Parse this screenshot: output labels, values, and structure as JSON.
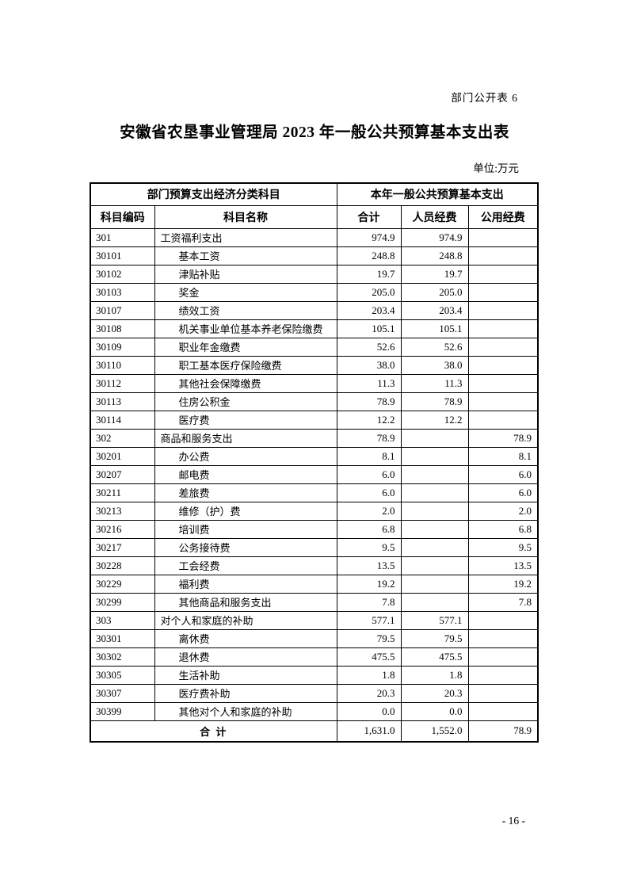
{
  "page": {
    "doc_label": "部门公开表 6",
    "title": "安徽省农垦事业管理局 2023 年一般公共预算基本支出表",
    "unit_note": "单位:万元",
    "page_number": "- 16 -"
  },
  "table": {
    "header_group_left": "部门预算支出经济分类科目",
    "header_group_right": "本年一般公共预算基本支出",
    "columns": [
      "科目编码",
      "科目名称",
      "合计",
      "人员经费",
      "公用经费"
    ],
    "rows": [
      {
        "code": "301",
        "name": "工资福利支出",
        "total": "974.9",
        "personnel": "974.9",
        "public": "",
        "level": 0
      },
      {
        "code": "30101",
        "name": "基本工资",
        "total": "248.8",
        "personnel": "248.8",
        "public": "",
        "level": 1
      },
      {
        "code": "30102",
        "name": "津贴补贴",
        "total": "19.7",
        "personnel": "19.7",
        "public": "",
        "level": 1
      },
      {
        "code": "30103",
        "name": "奖金",
        "total": "205.0",
        "personnel": "205.0",
        "public": "",
        "level": 1
      },
      {
        "code": "30107",
        "name": "绩效工资",
        "total": "203.4",
        "personnel": "203.4",
        "public": "",
        "level": 1
      },
      {
        "code": "30108",
        "name": "机关事业单位基本养老保险缴费",
        "total": "105.1",
        "personnel": "105.1",
        "public": "",
        "level": 1
      },
      {
        "code": "30109",
        "name": "职业年金缴费",
        "total": "52.6",
        "personnel": "52.6",
        "public": "",
        "level": 1
      },
      {
        "code": "30110",
        "name": "职工基本医疗保险缴费",
        "total": "38.0",
        "personnel": "38.0",
        "public": "",
        "level": 1
      },
      {
        "code": "30112",
        "name": "其他社会保障缴费",
        "total": "11.3",
        "personnel": "11.3",
        "public": "",
        "level": 1
      },
      {
        "code": "30113",
        "name": "住房公积金",
        "total": "78.9",
        "personnel": "78.9",
        "public": "",
        "level": 1
      },
      {
        "code": "30114",
        "name": "医疗费",
        "total": "12.2",
        "personnel": "12.2",
        "public": "",
        "level": 1
      },
      {
        "code": "302",
        "name": "商品和服务支出",
        "total": "78.9",
        "personnel": "",
        "public": "78.9",
        "level": 0
      },
      {
        "code": "30201",
        "name": "办公费",
        "total": "8.1",
        "personnel": "",
        "public": "8.1",
        "level": 1
      },
      {
        "code": "30207",
        "name": "邮电费",
        "total": "6.0",
        "personnel": "",
        "public": "6.0",
        "level": 1
      },
      {
        "code": "30211",
        "name": "差旅费",
        "total": "6.0",
        "personnel": "",
        "public": "6.0",
        "level": 1
      },
      {
        "code": "30213",
        "name": "维修（护）费",
        "total": "2.0",
        "personnel": "",
        "public": "2.0",
        "level": 1
      },
      {
        "code": "30216",
        "name": "培训费",
        "total": "6.8",
        "personnel": "",
        "public": "6.8",
        "level": 1
      },
      {
        "code": "30217",
        "name": "公务接待费",
        "total": "9.5",
        "personnel": "",
        "public": "9.5",
        "level": 1
      },
      {
        "code": "30228",
        "name": "工会经费",
        "total": "13.5",
        "personnel": "",
        "public": "13.5",
        "level": 1
      },
      {
        "code": "30229",
        "name": "福利费",
        "total": "19.2",
        "personnel": "",
        "public": "19.2",
        "level": 1
      },
      {
        "code": "30299",
        "name": "其他商品和服务支出",
        "total": "7.8",
        "personnel": "",
        "public": "7.8",
        "level": 1
      },
      {
        "code": "303",
        "name": "对个人和家庭的补助",
        "total": "577.1",
        "personnel": "577.1",
        "public": "",
        "level": 0
      },
      {
        "code": "30301",
        "name": "离休费",
        "total": "79.5",
        "personnel": "79.5",
        "public": "",
        "level": 1
      },
      {
        "code": "30302",
        "name": "退休费",
        "total": "475.5",
        "personnel": "475.5",
        "public": "",
        "level": 1
      },
      {
        "code": "30305",
        "name": "生活补助",
        "total": "1.8",
        "personnel": "1.8",
        "public": "",
        "level": 1
      },
      {
        "code": "30307",
        "name": "医疗费补助",
        "total": "20.3",
        "personnel": "20.3",
        "public": "",
        "level": 1
      },
      {
        "code": "30399",
        "name": "其他对个人和家庭的补助",
        "total": "0.0",
        "personnel": "0.0",
        "public": "",
        "level": 1
      }
    ],
    "total_row": {
      "label": "合  计",
      "total": "1,631.0",
      "personnel": "1,552.0",
      "public": "78.9"
    }
  }
}
